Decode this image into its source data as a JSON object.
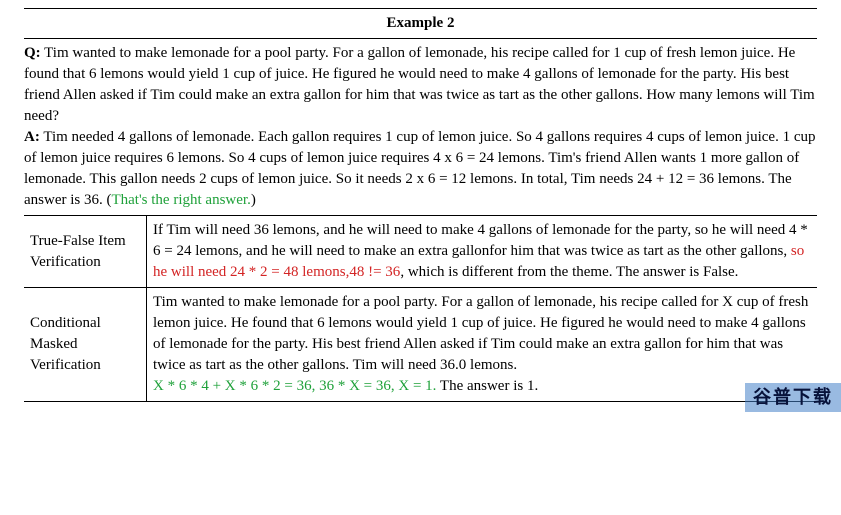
{
  "title": "Example 2",
  "q_label": "Q:",
  "a_label": "A:",
  "question": "Tim wanted to make lemonade for a pool party. For a gallon of lemonade, his recipe called for 1 cup of fresh lemon juice. He found that 6 lemons would yield 1 cup of juice. He figured he would need to make 4 gallons of lemonade for the party. His best friend Allen asked if Tim could make an extra gallon for him that was twice as tart as the other gallons. How many lemons will Tim need?",
  "answer_main": "Tim needed 4 gallons of lemonade. Each gallon requires 1 cup of lemon juice. So 4 gallons requires 4 cups of lemon juice. 1 cup of lemon juice requires 6 lemons. So 4 cups of lemon juice requires 4 x 6 = 24 lemons. Tim's friend Allen wants 1 more gallon of lemonade. This gallon needs 2 cups of lemon juice. So it needs 2 x 6 = 12 lemons. In total, Tim needs 24 + 12 = 36 lemons. The answer is 36. (",
  "answer_green": "That's the right answer.",
  "answer_tail": ")",
  "rows": [
    {
      "name": "True-False Item Verification",
      "pre": "If Tim will need 36 lemons, and he will need to make 4 gallons of lemonade for the party, so he will need 4 * 6 = 24 lemons, and he will need to make an extra gallonfor him that was twice as tart as the other gallons, ",
      "red": "so he will need 24 * 2 = 48 lemons,48 != 36",
      "post": ", which is different from the theme. The answer is False."
    },
    {
      "name": "Conditional Masked Verification",
      "pre": "Tim wanted to make lemonade for a pool party. For a gallon of lemonade, his recipe called for X cup of fresh lemon juice. He found that 6 lemons would yield 1 cup of juice. He figured he would need to make 4 gallons of lemonade for the party. His best friend Allen asked if Tim could make an extra gallon for him that was twice as tart as the other gallons. Tim will need 36.0 lemons. ",
      "green": "X * 6 * 4 + X * 6 * 2 = 36, 36 * X = 36, X = 1.",
      "post": " The answer is 1."
    }
  ],
  "watermark": "谷普下载",
  "colors": {
    "green": "#1fa13a",
    "red": "#d32424",
    "rule": "#000000",
    "watermark_bg": "rgba(70,130,200,0.55)"
  }
}
